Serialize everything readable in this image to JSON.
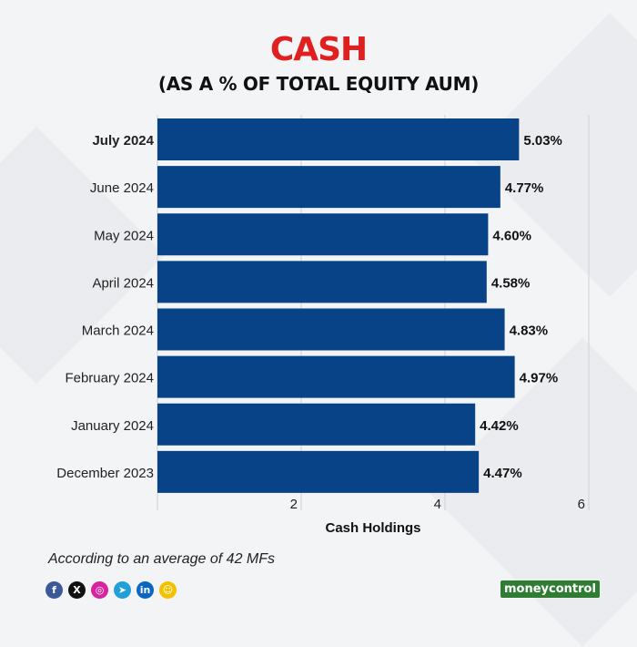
{
  "header": {
    "title": "CASH",
    "subtitle": "(AS A % OF TOTAL EQUITY AUM)"
  },
  "chart_data": {
    "type": "bar",
    "orientation": "horizontal",
    "title": "CASH",
    "subtitle": "(AS A % OF TOTAL EQUITY AUM)",
    "categories": [
      "July 2024",
      "June 2024",
      "May 2024",
      "April 2024",
      "March 2024",
      "February 2024",
      "January 2024",
      "December 2023"
    ],
    "values": [
      5.03,
      4.77,
      4.6,
      4.58,
      4.83,
      4.97,
      4.42,
      4.47
    ],
    "value_labels": [
      "5.03%",
      "4.77%",
      "4.60%",
      "4.58%",
      "4.83%",
      "4.97%",
      "4.42%",
      "4.47%"
    ],
    "highlighted_category": "July 2024",
    "xlabel": "Cash Holdings",
    "ylabel": "",
    "xlim": [
      0,
      6
    ],
    "xticks": [
      2,
      4,
      6
    ],
    "xtick_labels": [
      "2",
      "4",
      "6"
    ],
    "grid": true,
    "bar_color": "#084388"
  },
  "footer": {
    "note": "According to an average of 42 MFs",
    "brand": "moneycontrol"
  },
  "social": [
    {
      "name": "facebook",
      "glyph": "f",
      "color": "#3b5998"
    },
    {
      "name": "x",
      "glyph": "X",
      "color": "#111111"
    },
    {
      "name": "instagram",
      "glyph": "◎",
      "color": "#d6249f"
    },
    {
      "name": "telegram",
      "glyph": "➤",
      "color": "#229ed9"
    },
    {
      "name": "linkedin",
      "glyph": "in",
      "color": "#0a66c2"
    },
    {
      "name": "snapchat",
      "glyph": "☺",
      "color": "#f2c200"
    }
  ],
  "colors": {
    "title": "#e02020",
    "bar": "#084388",
    "grid": "#d0d0d0",
    "text": "#222222"
  }
}
